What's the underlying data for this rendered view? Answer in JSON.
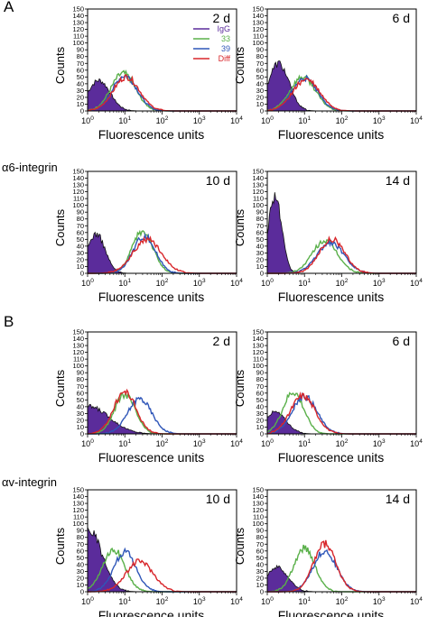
{
  "panels": {
    "A": "A",
    "B": "B"
  },
  "row_labels": {
    "alpha6": "α6-integrin",
    "alphav": "αv-integrin"
  },
  "series_colors": {
    "IgG": "#5b2c9b",
    "33": "#5ab04a",
    "39": "#2f56b8",
    "Diff": "#d8262b"
  },
  "chart_data": [
    {
      "type": "area",
      "id": "A-2d",
      "annotation": "2 d",
      "xlabel": "Fluorescence units",
      "ylabel": "Counts",
      "xscale": "log",
      "xlim": [
        1,
        10000
      ],
      "ylim": [
        0,
        150
      ],
      "yticks": [
        0,
        10,
        20,
        30,
        40,
        50,
        60,
        70,
        80,
        90,
        100,
        110,
        120,
        130,
        140,
        150
      ],
      "xticks": [
        "10^0",
        "10^1",
        "10^2",
        "10^3",
        "10^4"
      ],
      "legend": {
        "placement": "top-right",
        "entries": [
          "IgG",
          "33",
          "39",
          "Diff"
        ]
      },
      "series": [
        {
          "name": "IgG",
          "filled": true,
          "peak_x": 2,
          "peak_y": 45,
          "width": 0.3
        },
        {
          "name": "33",
          "peak_x": 9,
          "peak_y": 55,
          "width": 0.33
        },
        {
          "name": "39",
          "peak_x": 10,
          "peak_y": 52,
          "width": 0.33
        },
        {
          "name": "Diff",
          "peak_x": 11,
          "peak_y": 50,
          "width": 0.35
        }
      ]
    },
    {
      "type": "area",
      "id": "A-6d",
      "annotation": "6 d",
      "xlabel": "Fluorescence units",
      "ylabel": "Counts",
      "xscale": "log",
      "xlim": [
        1,
        10000
      ],
      "ylim": [
        0,
        150
      ],
      "yticks": [
        0,
        10,
        20,
        30,
        40,
        50,
        60,
        70,
        80,
        90,
        100,
        110,
        120,
        130,
        140,
        150
      ],
      "xticks": [
        "10^0",
        "10^1",
        "10^2",
        "10^3",
        "10^4"
      ],
      "series": [
        {
          "name": "IgG",
          "filled": true,
          "peak_x": 2,
          "peak_y": 70,
          "width": 0.28
        },
        {
          "name": "33",
          "peak_x": 9,
          "peak_y": 50,
          "width": 0.34
        },
        {
          "name": "39",
          "peak_x": 10,
          "peak_y": 48,
          "width": 0.34
        },
        {
          "name": "Diff",
          "peak_x": 11,
          "peak_y": 46,
          "width": 0.36
        }
      ]
    },
    {
      "type": "area",
      "id": "A-10d",
      "annotation": "10 d",
      "xlabel": "Fluorescence units",
      "ylabel": "Counts",
      "xscale": "log",
      "xlim": [
        1,
        10000
      ],
      "ylim": [
        0,
        150
      ],
      "yticks": [
        0,
        10,
        20,
        30,
        40,
        50,
        60,
        70,
        80,
        90,
        100,
        110,
        120,
        130,
        140,
        150
      ],
      "xticks": [
        "10^0",
        "10^1",
        "10^2",
        "10^3",
        "10^4"
      ],
      "series": [
        {
          "name": "IgG",
          "filled": true,
          "peak_x": 1.7,
          "peak_y": 58,
          "width": 0.24
        },
        {
          "name": "33",
          "peak_x": 30,
          "peak_y": 62,
          "width": 0.28
        },
        {
          "name": "39",
          "peak_x": 33,
          "peak_y": 55,
          "width": 0.3
        },
        {
          "name": "Diff",
          "peak_x": 40,
          "peak_y": 50,
          "width": 0.38
        }
      ]
    },
    {
      "type": "area",
      "id": "A-14d",
      "annotation": "14 d",
      "xlabel": "Fluorescence units",
      "ylabel": "Counts",
      "xscale": "log",
      "xlim": [
        1,
        10000
      ],
      "ylim": [
        0,
        150
      ],
      "yticks": [
        0,
        10,
        20,
        30,
        40,
        50,
        60,
        70,
        80,
        90,
        100,
        110,
        120,
        130,
        140,
        150
      ],
      "xticks": [
        "10^0",
        "10^1",
        "10^2",
        "10^3",
        "10^4"
      ],
      "series": [
        {
          "name": "IgG",
          "filled": true,
          "peak_x": 1.6,
          "peak_y": 115,
          "width": 0.18
        },
        {
          "name": "33",
          "peak_x": 35,
          "peak_y": 48,
          "width": 0.34
        },
        {
          "name": "39",
          "peak_x": 50,
          "peak_y": 45,
          "width": 0.36
        },
        {
          "name": "Diff",
          "peak_x": 55,
          "peak_y": 50,
          "width": 0.34
        }
      ]
    },
    {
      "type": "area",
      "id": "B-2d",
      "annotation": "2 d",
      "xlabel": "Fluorescence units",
      "ylabel": "Counts",
      "xscale": "log",
      "xlim": [
        1,
        10000
      ],
      "ylim": [
        0,
        150
      ],
      "yticks": [
        0,
        10,
        20,
        30,
        40,
        50,
        60,
        70,
        80,
        90,
        100,
        110,
        120,
        130,
        140,
        150
      ],
      "xticks": [
        "10^0",
        "10^1",
        "10^2",
        "10^3",
        "10^4"
      ],
      "series": [
        {
          "name": "IgG",
          "filled": true,
          "peak_x": 1.1,
          "peak_y": 40,
          "width": 0.55
        },
        {
          "name": "33",
          "peak_x": 10,
          "peak_y": 58,
          "width": 0.28
        },
        {
          "name": "39",
          "peak_x": 25,
          "peak_y": 52,
          "width": 0.32
        },
        {
          "name": "Diff",
          "peak_x": 10,
          "peak_y": 62,
          "width": 0.3
        }
      ]
    },
    {
      "type": "area",
      "id": "B-6d",
      "annotation": "6 d",
      "xlabel": "Fluorescence units",
      "ylabel": "Counts",
      "xscale": "log",
      "xlim": [
        1,
        10000
      ],
      "ylim": [
        0,
        150
      ],
      "yticks": [
        0,
        10,
        20,
        30,
        40,
        50,
        60,
        70,
        80,
        90,
        100,
        110,
        120,
        130,
        140,
        150
      ],
      "xticks": [
        "10^0",
        "10^1",
        "10^2",
        "10^3",
        "10^4"
      ],
      "series": [
        {
          "name": "IgG",
          "filled": true,
          "peak_x": 1.6,
          "peak_y": 32,
          "width": 0.3
        },
        {
          "name": "33",
          "peak_x": 5,
          "peak_y": 62,
          "width": 0.28
        },
        {
          "name": "39",
          "peak_x": 10,
          "peak_y": 55,
          "width": 0.33
        },
        {
          "name": "Diff",
          "peak_x": 9,
          "peak_y": 56,
          "width": 0.33
        }
      ]
    },
    {
      "type": "area",
      "id": "B-10d",
      "annotation": "10 d",
      "xlabel": "Fluorescence units",
      "ylabel": "Counts",
      "xscale": "log",
      "xlim": [
        1,
        10000
      ],
      "ylim": [
        0,
        150
      ],
      "yticks": [
        0,
        10,
        20,
        30,
        40,
        50,
        60,
        70,
        80,
        90,
        100,
        110,
        120,
        130,
        140,
        150
      ],
      "xticks": [
        "10^0",
        "10^1",
        "10^2",
        "10^3",
        "10^4"
      ],
      "series": [
        {
          "name": "IgG",
          "filled": true,
          "peak_x": 1.1,
          "peak_y": 90,
          "width": 0.35
        },
        {
          "name": "33",
          "peak_x": 5,
          "peak_y": 62,
          "width": 0.3
        },
        {
          "name": "39",
          "peak_x": 10,
          "peak_y": 58,
          "width": 0.3
        },
        {
          "name": "Diff",
          "peak_x": 25,
          "peak_y": 45,
          "width": 0.36
        }
      ]
    },
    {
      "type": "area",
      "id": "B-14d",
      "annotation": "14 d",
      "xlabel": "Fluorescence units",
      "ylabel": "Counts",
      "xscale": "log",
      "xlim": [
        1,
        10000
      ],
      "ylim": [
        0,
        150
      ],
      "yticks": [
        0,
        10,
        20,
        30,
        40,
        50,
        60,
        70,
        80,
        90,
        100,
        110,
        120,
        130,
        140,
        150
      ],
      "xticks": [
        "10^0",
        "10^1",
        "10^2",
        "10^3",
        "10^4"
      ],
      "series": [
        {
          "name": "IgG",
          "filled": true,
          "peak_x": 1.8,
          "peak_y": 36,
          "width": 0.3
        },
        {
          "name": "33",
          "peak_x": 10,
          "peak_y": 65,
          "width": 0.28
        },
        {
          "name": "39",
          "peak_x": 35,
          "peak_y": 60,
          "width": 0.32
        },
        {
          "name": "Diff",
          "peak_x": 35,
          "peak_y": 70,
          "width": 0.3
        }
      ]
    }
  ]
}
